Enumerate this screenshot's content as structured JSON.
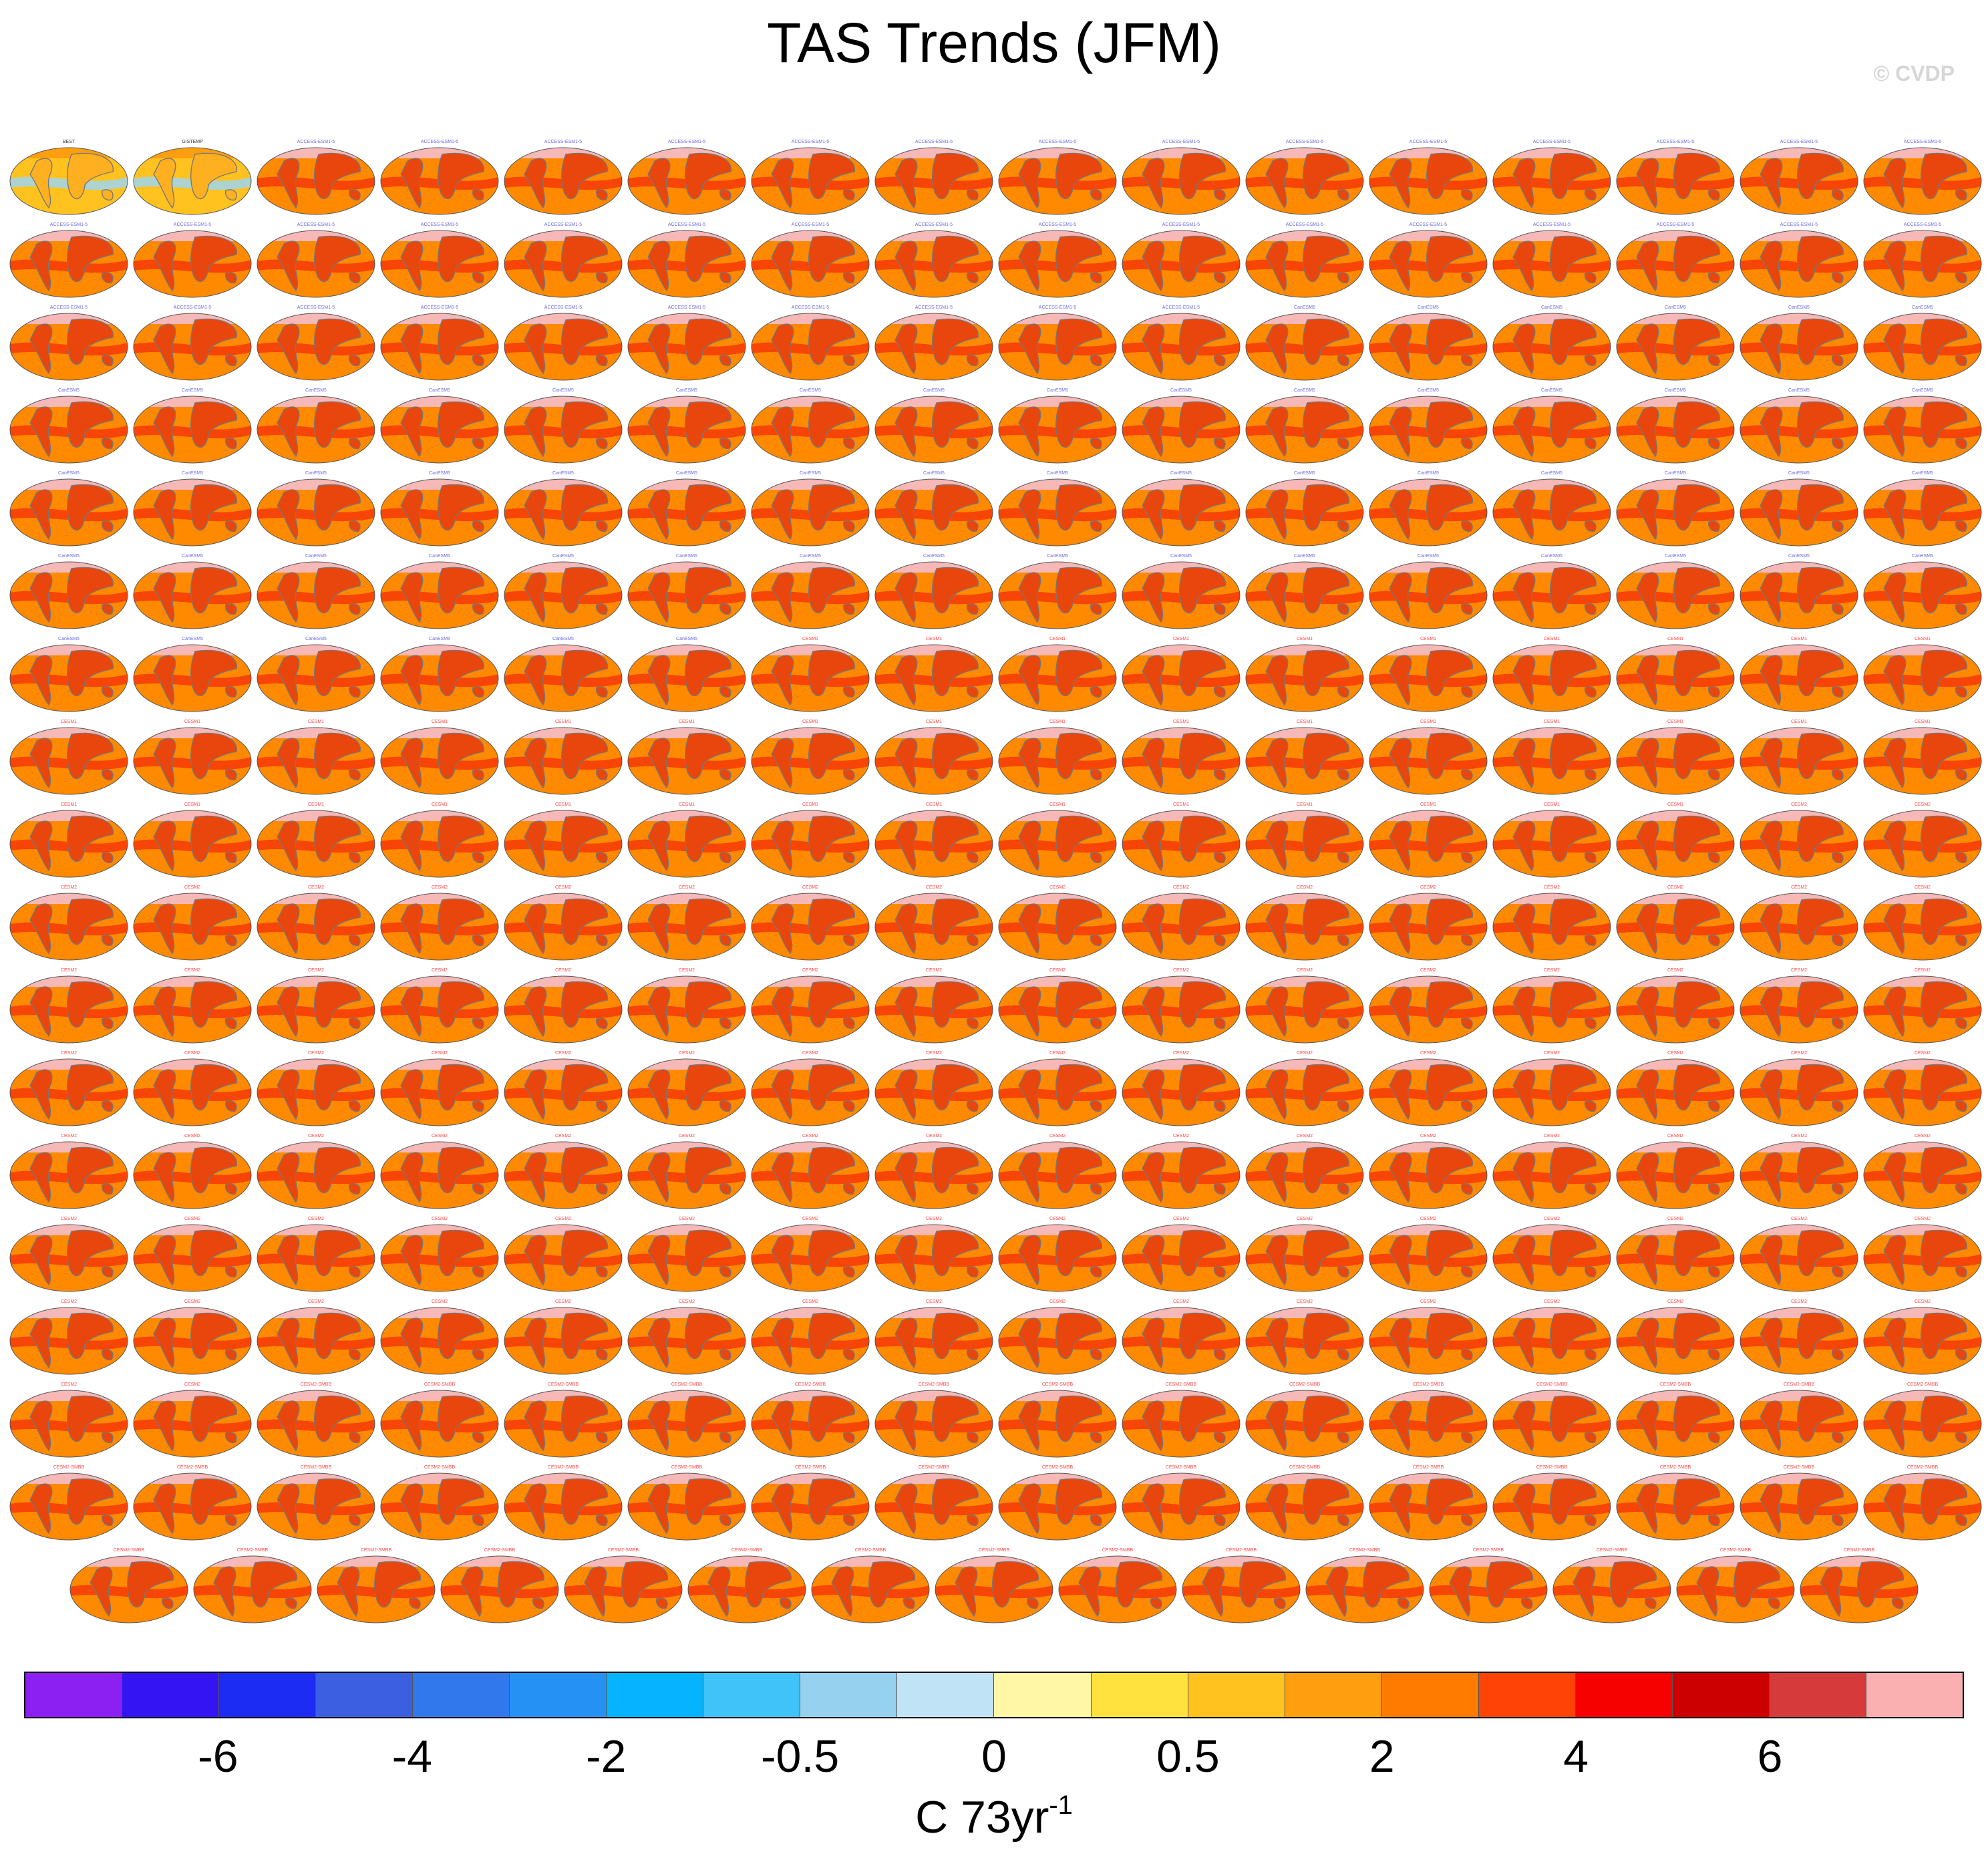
{
  "title": "TAS Trends (JFM)",
  "watermark": "© CVDP",
  "units": {
    "base": "C 73yr",
    "exp": "-1"
  },
  "colors": {
    "ocean_warm": "#ff8a00",
    "ocean_strong": "#f32e0a",
    "land": "#e8460c",
    "coast": "#777777",
    "ice_pink": "#f7b8b8",
    "obs_yellow": "#ffc21f",
    "obs_blue": "#9ed6f0",
    "title_model": "#6a6adf",
    "title_cesm": "#ff4747"
  },
  "chart_data": {
    "type": "heatmap",
    "title": "TAS Trends (JFM)",
    "description_layout": "small multiples of global map trend panels",
    "grid": {
      "columns": 16,
      "rows_full": 17,
      "last_row_panels": 15
    },
    "observations": [
      {
        "name": "BEST",
        "period": "1950-2022",
        "style": "obs"
      },
      {
        "name": "GISTEMP",
        "period": "1950-2022",
        "style": "obs"
      }
    ],
    "ensemble_period": "2027-2099",
    "model_groups": [
      {
        "prefix": "ACCESS-ESM1-5",
        "count": 40
      },
      {
        "prefix": "CanESM5",
        "count": 60
      },
      {
        "prefix": "CESM1",
        "count": 40
      },
      {
        "prefix": "CESM2",
        "count": 100
      },
      {
        "prefix": "CESM2-SMBB",
        "count": 45
      }
    ],
    "colorbar": {
      "colors": [
        "#8c1ff2",
        "#3414f2",
        "#1c2cf2",
        "#3c5ee0",
        "#3078eb",
        "#2691f4",
        "#05b3ff",
        "#3fc3f8",
        "#96d2ef",
        "#c0e3f6",
        "#fff6a6",
        "#ffe23d",
        "#ffc21f",
        "#ff9e0e",
        "#ff7b00",
        "#ff4206",
        "#f60000",
        "#cc0000",
        "#d63a3a",
        "#fab0b0"
      ],
      "tick_labels": [
        "-6",
        "-4",
        "-2",
        "-0.5",
        "0",
        "0.5",
        "2",
        "4",
        "6"
      ],
      "tick_box_index": [
        2,
        4,
        6,
        8,
        10,
        12,
        14,
        16,
        18
      ],
      "units": "C 73yr-1"
    }
  }
}
